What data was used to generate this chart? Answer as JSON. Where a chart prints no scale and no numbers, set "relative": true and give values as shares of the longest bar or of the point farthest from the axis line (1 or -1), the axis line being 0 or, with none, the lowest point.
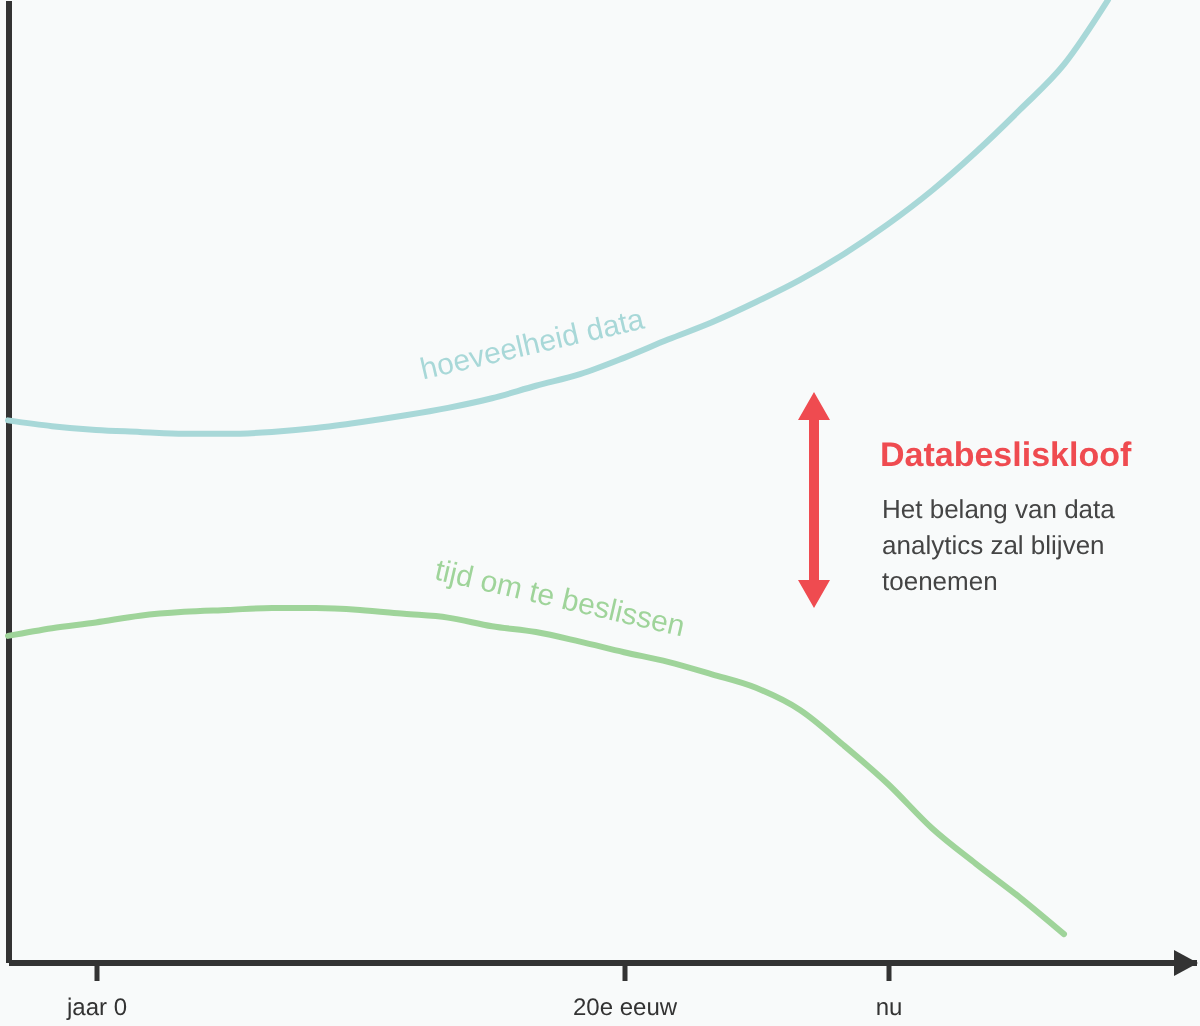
{
  "chart_data": {
    "type": "line",
    "relative": true,
    "tick_labels": "x",
    "grid": false,
    "marker": "none",
    "line_style": "solid",
    "categories": [
      null,
      null,
      "jaar 0",
      null,
      null,
      null,
      null,
      null,
      null,
      null,
      null,
      null,
      null,
      null,
      "20e eeuw",
      null,
      null,
      null,
      null,
      null,
      "nu",
      null,
      null,
      null,
      null,
      null,
      null,
      null
    ],
    "series": [
      {
        "name": "hoeveelheid data",
        "color": "#a8d8d8",
        "values": [
          0.563,
          0.557,
          0.553,
          0.551,
          0.549,
          0.549,
          0.551,
          0.555,
          0.561,
          0.568,
          0.576,
          0.586,
          0.599,
          0.611,
          0.628,
          0.647,
          0.665,
          0.686,
          0.709,
          0.736,
          0.767,
          0.802,
          0.842,
          0.886,
          0.933,
          1,
          null,
          null
        ]
      },
      {
        "name": "tijd om te beslissen",
        "color": "#9fd49a",
        "values": [
          0.339,
          0.347,
          0.353,
          0.36,
          0.364,
          0.366,
          0.368,
          0.368,
          0.366,
          0.362,
          0.358,
          0.349,
          0.343,
          0.333,
          0.322,
          0.312,
          0.299,
          0.285,
          0.262,
          0.225,
          0.185,
          0.139,
          0.102,
          0.067,
          0.029,
          null,
          null,
          null
        ]
      }
    ],
    "annotations": [
      "Databesliskloof",
      "Het belang van data analytics zal blijven toenemen"
    ]
  }
}
